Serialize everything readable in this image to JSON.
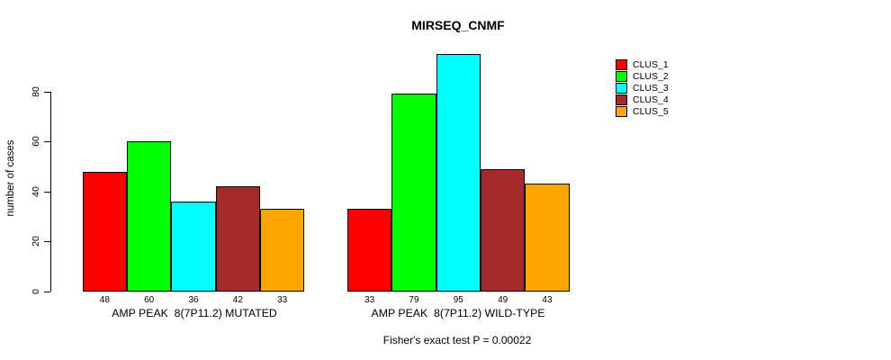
{
  "chart_data": {
    "type": "bar",
    "title": "MIRSEQ_CNMF",
    "ylabel": "number of cases",
    "xlabel": "",
    "ylim": [
      0,
      95
    ],
    "yticks": [
      0,
      20,
      40,
      60,
      80
    ],
    "grid": false,
    "legend_position": "right",
    "bar_value_labels_shown": true,
    "categories": [
      "AMP PEAK  8(7P11.2) MUTATED",
      "AMP PEAK  8(7P11.2) WILD-TYPE"
    ],
    "series": [
      {
        "name": "CLUS_1",
        "color": "#FF0000",
        "values": [
          48,
          33
        ]
      },
      {
        "name": "CLUS_2",
        "color": "#00FF00",
        "values": [
          60,
          79
        ]
      },
      {
        "name": "CLUS_3",
        "color": "#00FFFF",
        "values": [
          36,
          95
        ]
      },
      {
        "name": "CLUS_4",
        "color": "#A52A2A",
        "values": [
          42,
          49
        ]
      },
      {
        "name": "CLUS_5",
        "color": "#FFA500",
        "values": [
          33,
          43
        ]
      }
    ],
    "footnote": "Fisher's exact test P = 0.00022"
  }
}
